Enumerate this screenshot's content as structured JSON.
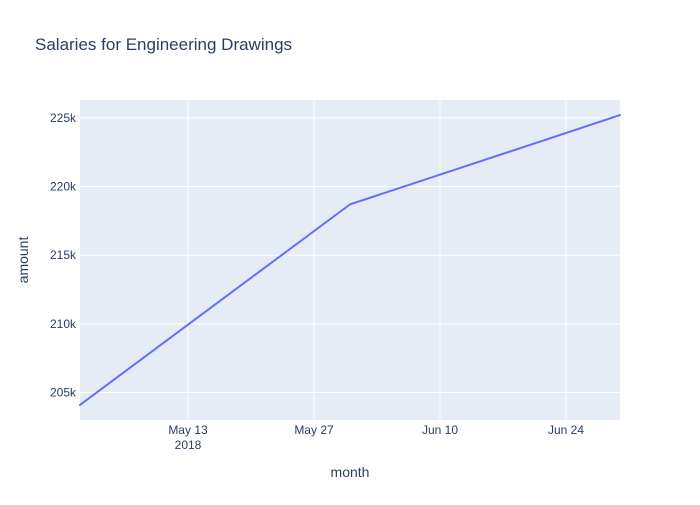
{
  "colors": {
    "plot_bg": "#e5ecf6",
    "grid": "#ffffff",
    "line": "#636efa",
    "title_text": "#2a3f5f",
    "tick_text": "#2a3f5f"
  },
  "chart_data": {
    "type": "line",
    "title": "Salaries for Engineering Drawings",
    "xlabel": "month",
    "ylabel": "amount",
    "x_axis_kind": "date",
    "xlim": [
      "2018-05-01",
      "2018-06-30"
    ],
    "ylim": [
      203000,
      226300
    ],
    "x_ticks": [
      {
        "date": "2018-05-13",
        "label": "May 13",
        "sublabel": "2018"
      },
      {
        "date": "2018-05-27",
        "label": "May 27",
        "sublabel": ""
      },
      {
        "date": "2018-06-10",
        "label": "Jun 10",
        "sublabel": ""
      },
      {
        "date": "2018-06-24",
        "label": "Jun 24",
        "sublabel": ""
      }
    ],
    "y_ticks": [
      {
        "value": 205000,
        "label": "205k"
      },
      {
        "value": 210000,
        "label": "210k"
      },
      {
        "value": 215000,
        "label": "215k"
      },
      {
        "value": 220000,
        "label": "220k"
      },
      {
        "value": 225000,
        "label": "225k"
      }
    ],
    "grid": true,
    "legend": "none",
    "series": [
      {
        "x": [
          "2018-05-01",
          "2018-05-31",
          "2018-06-30"
        ],
        "y": [
          204100,
          218700,
          225200
        ]
      }
    ]
  }
}
